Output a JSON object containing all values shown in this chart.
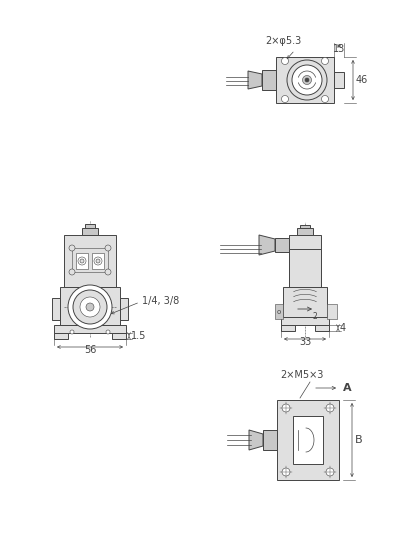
{
  "bg_color": "#ffffff",
  "line_color": "#444444",
  "fill_light": "#e0e0e0",
  "fill_medium": "#c8c8c8",
  "fill_white": "#ffffff",
  "annotations": {
    "tr_phi": "2×φ5.3",
    "tr_13": "13",
    "tr_46": "46",
    "ml_port": "1/4, 3/8",
    "ml_15": "1.5",
    "ml_56": "56",
    "mr_4": "4",
    "mr_33": "33",
    "br_m5": "2×M5×3",
    "br_A": "A",
    "br_B": "B"
  }
}
